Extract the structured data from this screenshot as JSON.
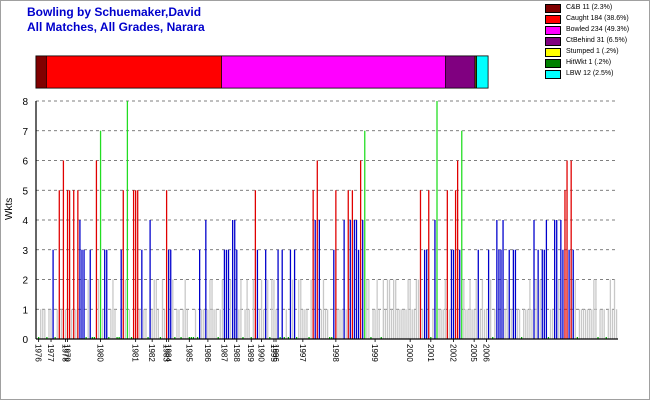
{
  "chart_data": {
    "type": "bar",
    "title": "Bowling by Schuemaker,David",
    "subtitle": "All Matches, All Grades, Narara",
    "ylabel": "Wkts",
    "ylim": [
      0,
      8
    ],
    "yticks": [
      "0",
      "1",
      "2",
      "3",
      "4",
      "5",
      "6",
      "7",
      "8"
    ],
    "grid": true,
    "legend_position": "top-right",
    "legend": [
      {
        "label": "C&B 11 (2.3%)",
        "color": "#800000"
      },
      {
        "label": "Caught 184 (38.6%)",
        "color": "#ff0000"
      },
      {
        "label": "Bowled 234 (49.3%)",
        "color": "#ff00ff"
      },
      {
        "label": "CtBehind 31 (6.5%)",
        "color": "#800080"
      },
      {
        "label": "Stumped 1 (.2%)",
        "color": "#ffff00"
      },
      {
        "label": "HitWkt 1 (.2%)",
        "color": "#008000"
      },
      {
        "label": "LBW 12 (2.5%)",
        "color": "#00ffff"
      }
    ],
    "proportion_bar": [
      {
        "name": "C&B",
        "percent": 2.3,
        "color": "#800000"
      },
      {
        "name": "Caught",
        "percent": 38.6,
        "color": "#ff0000"
      },
      {
        "name": "Bowled",
        "percent": 49.3,
        "color": "#ff00ff"
      },
      {
        "name": "CtBehind",
        "percent": 6.5,
        "color": "#800080"
      },
      {
        "name": "Stumped",
        "percent": 0.2,
        "color": "#ffff00"
      },
      {
        "name": "HitWkt",
        "percent": 0.2,
        "color": "#008000"
      },
      {
        "name": "LBW",
        "percent": 2.5,
        "color": "#00ffff"
      }
    ],
    "bar_colors": {
      "0": "#00b000",
      "1": "#c8c8c8",
      "2": "#c8c8c8",
      "3": "#0000cc",
      "4": "#0000cc",
      "5": "#e00000",
      "6": "#e00000",
      "7": "#22dd22",
      "8": "#22dd22"
    },
    "values": [
      0,
      1,
      1,
      1,
      0,
      1,
      1,
      3,
      0,
      1,
      5,
      1,
      6,
      1,
      5,
      5,
      1,
      5,
      1,
      5,
      4,
      3,
      3,
      0,
      2,
      3,
      0,
      0,
      6,
      2,
      7,
      1,
      3,
      3,
      0,
      1,
      2,
      1,
      0,
      0,
      3,
      5,
      2,
      8,
      1,
      0,
      5,
      5,
      5,
      1,
      3,
      1,
      1,
      0,
      4,
      1,
      2,
      2,
      1,
      0,
      2,
      1,
      5,
      3,
      3,
      2,
      0,
      1,
      1,
      0,
      1,
      2,
      1,
      0,
      0,
      0,
      1,
      0,
      3,
      1,
      1,
      4,
      1,
      2,
      2,
      1,
      1,
      0,
      1,
      2,
      3,
      3,
      3,
      2,
      4,
      4,
      3,
      1,
      2,
      0,
      1,
      2,
      1,
      0,
      2,
      5,
      3,
      1,
      2,
      1,
      3,
      2,
      0,
      2,
      2,
      1,
      3,
      0,
      3,
      0,
      1,
      0,
      3,
      2,
      3,
      0,
      2,
      2,
      1,
      1,
      1,
      0,
      2,
      5,
      4,
      6,
      4,
      1,
      2,
      1,
      1,
      0,
      0,
      3,
      5,
      1,
      1,
      1,
      4,
      1,
      5,
      4,
      5,
      4,
      4,
      3,
      6,
      4,
      7,
      2,
      2,
      0,
      1,
      1,
      2,
      1,
      0,
      2,
      1,
      2,
      2,
      1,
      2,
      2,
      1,
      1,
      1,
      1,
      1,
      2,
      2,
      1,
      1,
      2,
      2,
      5,
      1,
      3,
      3,
      5,
      0,
      1,
      4,
      8,
      1,
      1,
      1,
      2,
      5,
      1,
      3,
      3,
      5,
      6,
      3,
      7,
      2,
      1,
      1,
      2,
      1,
      1,
      2,
      3,
      1,
      2,
      1,
      1,
      3,
      2,
      0,
      1,
      4,
      3,
      3,
      4,
      1,
      2,
      3,
      1,
      3,
      3,
      1,
      1,
      0,
      1,
      1,
      1,
      2,
      1,
      4,
      2,
      3,
      2,
      3,
      3,
      4,
      0,
      1,
      1,
      4,
      4,
      2,
      4,
      3,
      5,
      6,
      3,
      6,
      3,
      2,
      0,
      1,
      1,
      1,
      1,
      1,
      1,
      1,
      2,
      2,
      0,
      1,
      1,
      1,
      0,
      1,
      2,
      1,
      2,
      1
    ],
    "year_labels": [
      {
        "label": "1976",
        "index": 0
      },
      {
        "label": "1977",
        "index": 6
      },
      {
        "label": "1978",
        "index": 13
      },
      {
        "label": "1979",
        "index": 14
      },
      {
        "label": "1980",
        "index": 30
      },
      {
        "label": "1981",
        "index": 47
      },
      {
        "label": "1982",
        "index": 55
      },
      {
        "label": "1983",
        "index": 62
      },
      {
        "label": "1984",
        "index": 63
      },
      {
        "label": "1985",
        "index": 73
      },
      {
        "label": "1986",
        "index": 82
      },
      {
        "label": "1987",
        "index": 90
      },
      {
        "label": "1988",
        "index": 96
      },
      {
        "label": "1989",
        "index": 103
      },
      {
        "label": "1990",
        "index": 108
      },
      {
        "label": "1995",
        "index": 114
      },
      {
        "label": "1996",
        "index": 115
      },
      {
        "label": "1997",
        "index": 128
      },
      {
        "label": "1998",
        "index": 144
      },
      {
        "label": "1999",
        "index": 163
      },
      {
        "label": "2000",
        "index": 180
      },
      {
        "label": "2001",
        "index": 190
      },
      {
        "label": "2002",
        "index": 201
      },
      {
        "label": "2005",
        "index": 211
      },
      {
        "label": "2006",
        "index": 217
      }
    ]
  }
}
